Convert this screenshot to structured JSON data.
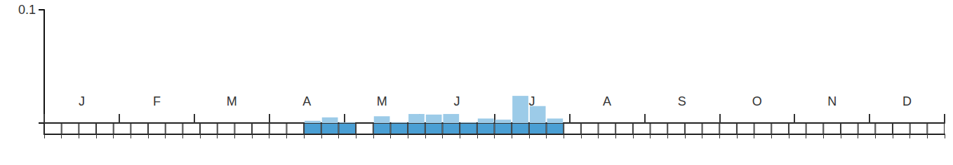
{
  "chart_data": {
    "type": "bar",
    "categories": [
      null,
      null,
      null,
      null,
      null,
      null,
      null,
      null,
      null,
      null,
      null,
      null,
      null,
      null,
      null,
      null,
      null,
      null,
      null,
      null,
      null,
      null,
      null,
      null,
      null,
      null,
      null,
      null,
      null,
      null,
      null,
      null,
      null,
      null,
      null,
      null,
      null,
      null,
      null,
      null,
      null,
      null,
      null,
      null,
      null,
      null,
      null,
      null,
      null,
      null,
      null,
      null
    ],
    "months": [
      "J",
      "F",
      "M",
      "A",
      "M",
      "J",
      "J",
      "A",
      "S",
      "O",
      "N",
      "D"
    ],
    "values": [
      0,
      0,
      0,
      0,
      0,
      0,
      0,
      0,
      0,
      0,
      0,
      0,
      0,
      0,
      0,
      0.002,
      0.005,
      0.0005,
      0,
      0.006,
      0.0005,
      0.008,
      0.0075,
      0.008,
      0.0005,
      0.004,
      0.003,
      0.024,
      0.015,
      0.004,
      0,
      0,
      0,
      0,
      0,
      0,
      0,
      0,
      0,
      0,
      0,
      0,
      0,
      0,
      0,
      0,
      0,
      0,
      0,
      0,
      0,
      0
    ],
    "color": "#9ccbe8",
    "ylim": [
      0,
      0.1
    ],
    "yticks": [
      {
        "value": 0,
        "label": null
      },
      0.1
    ]
  }
}
